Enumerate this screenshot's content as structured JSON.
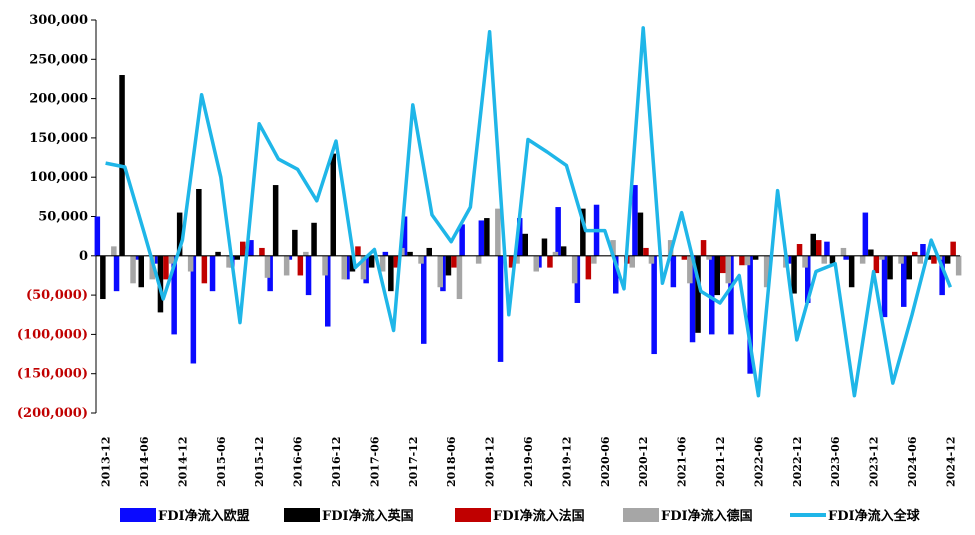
{
  "chart_data": {
    "type": "bar",
    "title": "",
    "xlabel": "",
    "ylabel": "",
    "ylim": [
      -200000,
      300000
    ],
    "y_ticks": [
      300000,
      250000,
      200000,
      150000,
      100000,
      50000,
      0,
      -50000,
      -100000,
      -150000,
      -200000
    ],
    "y_tick_labels": [
      "300,000",
      "250,000",
      "200,000",
      "150,000",
      "100,000",
      "50,000",
      "0",
      "(50,000)",
      "(100,000)",
      "(150,000)",
      "(200,000)"
    ],
    "positive_tick_color": "#000000",
    "negative_tick_color": "#c00000",
    "x_tick_labels": [
      "2013-12",
      "2014-06",
      "2014-12",
      "2015-06",
      "2015-12",
      "2016-06",
      "2016-12",
      "2017-06",
      "2017-12",
      "2018-06",
      "2018-12",
      "2019-06",
      "2019-12",
      "2020-06",
      "2020-12",
      "2021-06",
      "2021-12",
      "2022-06",
      "2022-12",
      "2023-06",
      "2023-12",
      "2024-06",
      "2024-12"
    ],
    "x": [
      "2013-12",
      "2014-03",
      "2014-06",
      "2014-09",
      "2014-12",
      "2015-03",
      "2015-06",
      "2015-09",
      "2015-12",
      "2016-03",
      "2016-06",
      "2016-09",
      "2016-12",
      "2017-03",
      "2017-06",
      "2017-09",
      "2017-12",
      "2018-03",
      "2018-06",
      "2018-09",
      "2018-12",
      "2019-03",
      "2019-06",
      "2019-09",
      "2019-12",
      "2020-03",
      "2020-06",
      "2020-09",
      "2020-12",
      "2021-03",
      "2021-06",
      "2021-09",
      "2021-12",
      "2022-03",
      "2022-06",
      "2022-09",
      "2022-12",
      "2023-03",
      "2023-06",
      "2023-09",
      "2023-12",
      "2024-03",
      "2024-06",
      "2024-09",
      "2024-12"
    ],
    "series": [
      {
        "name": "FDI净流入欧盟",
        "kind": "bar",
        "color": "#0a0aff",
        "values": [
          50000,
          -45000,
          -5000,
          -10000,
          -100000,
          -137000,
          -45000,
          -15000,
          20000,
          -45000,
          -5000,
          -50000,
          -90000,
          -30000,
          -35000,
          5000,
          50000,
          -112000,
          -45000,
          40000,
          45000,
          -135000,
          48000,
          -15000,
          62000,
          -60000,
          65000,
          -48000,
          90000,
          -125000,
          -40000,
          -110000,
          -100000,
          -100000,
          -150000,
          -10000,
          -10000,
          -60000,
          18000,
          -5000,
          55000,
          -78000,
          -65000,
          15000,
          -50000
        ]
      },
      {
        "name": "FDI净流入英国",
        "kind": "bar",
        "color": "#000000",
        "values": [
          -55000,
          230000,
          -40000,
          -72000,
          55000,
          85000,
          5000,
          -5000,
          0,
          90000,
          33000,
          42000,
          130000,
          -20000,
          -15000,
          -45000,
          5000,
          10000,
          -25000,
          0,
          48000,
          0,
          28000,
          22000,
          12000,
          60000,
          0,
          0,
          55000,
          0,
          0,
          -98000,
          -50000,
          0,
          -5000,
          0,
          -48000,
          28000,
          -10000,
          -40000,
          8000,
          -30000,
          -30000,
          -5000,
          -10000
        ]
      },
      {
        "name": "FDI净流入法国",
        "kind": "bar",
        "color": "#c00000",
        "values": [
          0,
          0,
          0,
          -30000,
          0,
          -35000,
          0,
          18000,
          10000,
          0,
          -25000,
          0,
          0,
          12000,
          0,
          -15000,
          0,
          0,
          -15000,
          0,
          0,
          -15000,
          0,
          -15000,
          0,
          -30000,
          0,
          -10000,
          10000,
          0,
          -5000,
          20000,
          -22000,
          -12000,
          0,
          0,
          15000,
          20000,
          0,
          0,
          -22000,
          0,
          5000,
          -10000,
          18000
        ]
      },
      {
        "name": "FDI净流入德国",
        "kind": "bar",
        "color": "#a6a6a6",
        "values": [
          12000,
          -35000,
          -30000,
          -10000,
          -20000,
          0,
          -15000,
          0,
          -28000,
          -25000,
          5000,
          -25000,
          -30000,
          -30000,
          -20000,
          10000,
          -10000,
          -40000,
          -55000,
          -10000,
          60000,
          -10000,
          -20000,
          5000,
          -35000,
          -10000,
          20000,
          -15000,
          -10000,
          20000,
          -35000,
          -5000,
          -35000,
          -12000,
          -40000,
          -15000,
          -15000,
          -10000,
          10000,
          -10000,
          -5000,
          -10000,
          -10000,
          -5000,
          -25000
        ]
      },
      {
        "name": "FDI净流入全球",
        "kind": "line",
        "color": "#1fb6e8",
        "values": [
          118000,
          113000,
          30000,
          -55000,
          20000,
          205000,
          100000,
          -85000,
          168000,
          123000,
          110000,
          70000,
          146000,
          -15000,
          8000,
          -95000,
          192000,
          52000,
          18000,
          62000,
          285000,
          -75000,
          148000,
          132000,
          115000,
          32000,
          32000,
          -42000,
          290000,
          -35000,
          55000,
          -45000,
          -60000,
          -25000,
          -178000,
          83000,
          -107000,
          -20000,
          -10000,
          -178000,
          -20000,
          -162000,
          -75000,
          20000,
          -40000
        ]
      }
    ],
    "legend_position": "bottom",
    "grid": false
  }
}
